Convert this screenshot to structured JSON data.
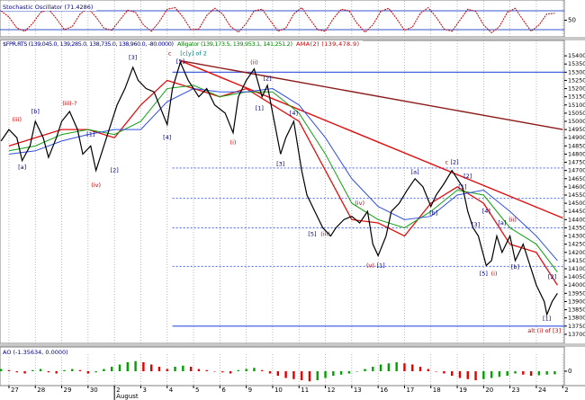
{
  "chart_data": [
    {
      "type": "line",
      "title": "Stochastic Oscillator (71.4286)",
      "x": [
        -3,
        0,
        3,
        6,
        9,
        12,
        15,
        18,
        21,
        24,
        27,
        30,
        33,
        36,
        39,
        42,
        45,
        48,
        51,
        54,
        57,
        60,
        63,
        66,
        69,
        72,
        75,
        78,
        81,
        84,
        87,
        90,
        93,
        96,
        99,
        102,
        105,
        108,
        111,
        114,
        117,
        120,
        123,
        126,
        129,
        132,
        135,
        138,
        141,
        144,
        147,
        150,
        153,
        156,
        159,
        162,
        165,
        168,
        171,
        174,
        177,
        180,
        183,
        186,
        189,
        192,
        195,
        198,
        201,
        204,
        207
      ],
      "series": [
        {
          "color": "#c00000",
          "values": [
            80,
            60,
            25,
            15,
            40,
            75,
            85,
            55,
            20,
            30,
            70,
            88,
            60,
            25,
            18,
            50,
            82,
            75,
            35,
            15,
            45,
            85,
            90,
            60,
            20,
            22,
            65,
            88,
            70,
            30,
            12,
            40,
            80,
            85,
            50,
            15,
            25,
            70,
            90,
            55,
            20,
            15,
            55,
            85,
            80,
            40,
            12,
            35,
            78,
            88,
            55,
            18,
            28,
            72,
            90,
            60,
            22,
            15,
            50,
            85,
            78,
            35,
            10,
            30,
            75,
            88,
            50,
            15,
            35,
            70,
            72
          ]
        }
      ],
      "ylim": [
        0,
        100
      ],
      "yticks": [
        50
      ],
      "hlines": [
        {
          "value": 80,
          "color": "#3355cc",
          "style": "solid"
        },
        {
          "value": 20,
          "color": "#3355cc",
          "style": "solid"
        }
      ]
    },
    {
      "type": "line",
      "title": "$FPR.RTS (139,045.0, 139,285.0, 138,735.0, 138,960.0, -80.0000)",
      "subtitles": [
        {
          "text": "Alligator (139,173.5, 139,953.1, 141,251.2)",
          "color": "#008000"
        },
        {
          "text": "AMA(2) (139,478.9)",
          "color": "#c00000"
        }
      ],
      "x": [
        -3,
        0,
        3,
        5,
        8,
        10,
        13,
        15,
        18,
        20,
        23,
        26,
        28,
        31,
        33,
        36,
        38,
        41,
        44,
        47,
        49,
        52,
        55,
        57,
        60,
        62,
        65,
        68,
        72,
        75,
        78,
        82,
        85,
        87,
        90,
        93,
        96,
        98,
        100,
        103,
        105,
        108,
        111,
        113,
        116,
        119,
        122,
        124,
        127,
        130,
        133,
        136,
        138,
        140,
        143,
        145,
        148,
        151,
        154,
        157,
        160,
        162,
        165,
        168,
        170,
        172,
        174,
        176,
        178,
        181,
        183,
        185,
        187,
        190,
        192,
        195,
        197,
        200,
        203,
        204,
        206,
        208
      ],
      "series": [
        {
          "color": "#000000",
          "width": 1.2,
          "values": [
            14880,
            14950,
            14900,
            14760,
            14850,
            15000,
            14900,
            14780,
            14900,
            15000,
            15060,
            14950,
            14800,
            14850,
            14700,
            14850,
            14950,
            15100,
            15200,
            15330,
            15250,
            15200,
            15180,
            15100,
            14980,
            15200,
            15360,
            15250,
            15150,
            15200,
            15100,
            15050,
            14930,
            15150,
            15250,
            15320,
            15150,
            15220,
            15050,
            14800,
            14900,
            15000,
            14700,
            14550,
            14450,
            14350,
            14300,
            14350,
            14400,
            14420,
            14380,
            14450,
            14250,
            14180,
            14300,
            14450,
            14500,
            14580,
            14650,
            14600,
            14480,
            14550,
            14620,
            14700,
            14650,
            14600,
            14450,
            14350,
            14300,
            14120,
            14150,
            14300,
            14200,
            14300,
            14150,
            14250,
            14150,
            14000,
            13900,
            13820,
            13900,
            13950
          ]
        },
        {
          "color": "#e01010",
          "width": 1.3,
          "x": [
            0,
            10,
            20,
            30,
            40,
            50,
            60,
            70,
            80,
            90,
            100,
            110,
            120,
            130,
            140,
            150,
            160,
            170,
            180,
            190,
            200,
            208
          ],
          "values": [
            14850,
            14900,
            14950,
            14950,
            14900,
            15100,
            15250,
            15200,
            15150,
            15200,
            15100,
            15000,
            14700,
            14400,
            14380,
            14300,
            14500,
            14600,
            14500,
            14250,
            14200,
            14000
          ]
        },
        {
          "color": "#10a010",
          "width": 1,
          "x": [
            0,
            10,
            20,
            30,
            40,
            50,
            60,
            70,
            80,
            90,
            100,
            110,
            120,
            130,
            140,
            150,
            160,
            170,
            180,
            190,
            200,
            208
          ],
          "values": [
            14820,
            14850,
            14920,
            14950,
            14920,
            15000,
            15200,
            15220,
            15150,
            15180,
            15180,
            15050,
            14800,
            14500,
            14400,
            14350,
            14450,
            14580,
            14550,
            14350,
            14250,
            14080
          ]
        },
        {
          "color": "#3050e0",
          "width": 1,
          "x": [
            0,
            10,
            20,
            30,
            40,
            50,
            60,
            70,
            80,
            90,
            100,
            110,
            120,
            130,
            140,
            150,
            160,
            170,
            180,
            190,
            200,
            208
          ],
          "values": [
            14800,
            14820,
            14880,
            14920,
            14950,
            14950,
            15120,
            15200,
            15180,
            15180,
            15200,
            15100,
            14900,
            14650,
            14480,
            14400,
            14420,
            14550,
            14580,
            14450,
            14300,
            14150
          ]
        }
      ],
      "trend_lines": [
        {
          "color": "#8b1a1a",
          "x": [
            65,
            210
          ],
          "values": [
            15370,
            14950
          ]
        },
        {
          "color": "#e01010",
          "x": [
            65,
            210
          ],
          "values": [
            15370,
            14410
          ]
        }
      ],
      "hlines": [
        {
          "value": 15300,
          "from": 62,
          "color": "#3050e0",
          "style": "solid"
        },
        {
          "value": 14715,
          "from": 62,
          "color": "#3050e0",
          "style": "dotted"
        },
        {
          "value": 14530,
          "from": 62,
          "color": "#3050e0",
          "style": "dotted"
        },
        {
          "value": 14350,
          "from": 62,
          "color": "#3050e0",
          "style": "dotted"
        },
        {
          "value": 14115,
          "from": 62,
          "color": "#3050e0",
          "style": "dotted"
        },
        {
          "value": 13750,
          "from": 62,
          "color": "#3050e0",
          "style": "solid"
        }
      ],
      "annotations": [
        {
          "text": "(iii)",
          "x": 3,
          "y": 15010,
          "color": "#c00000"
        },
        {
          "text": "[a]",
          "x": 5,
          "y": 14720,
          "color": "#000080"
        },
        {
          "text": "[b]",
          "x": 10,
          "y": 15060,
          "color": "#000080"
        },
        {
          "text": "(iii)-?",
          "x": 23,
          "y": 15110,
          "color": "#c00000"
        },
        {
          "text": "[1]",
          "x": 31,
          "y": 14920,
          "color": "#000080"
        },
        {
          "text": "[2]",
          "x": 40,
          "y": 14700,
          "color": "#000080"
        },
        {
          "text": "(iv)",
          "x": 33,
          "y": 14610,
          "color": "#c00000"
        },
        {
          "text": "[3]",
          "x": 47,
          "y": 15390,
          "color": "#000080"
        },
        {
          "text": "[4]",
          "x": 60,
          "y": 14900,
          "color": "#000080"
        },
        {
          "text": "c",
          "x": 61,
          "y": 15415,
          "color": "#c00000"
        },
        {
          "text": "[c[y] of 2",
          "x": 70,
          "y": 15415,
          "color": "#008080"
        },
        {
          "text": "[5]",
          "x": 65,
          "y": 15365,
          "color": "#000080"
        },
        {
          "text": "(i)",
          "x": 85,
          "y": 14870,
          "color": "#c00000"
        },
        {
          "text": "(ii)",
          "x": 93,
          "y": 15360,
          "color": "#c00000"
        },
        {
          "text": "[1]",
          "x": 95,
          "y": 15080,
          "color": "#000080"
        },
        {
          "text": "[2]",
          "x": 98,
          "y": 15260,
          "color": "#000080"
        },
        {
          "text": "[3]",
          "x": 103,
          "y": 14740,
          "color": "#000080"
        },
        {
          "text": "[4]",
          "x": 108,
          "y": 15050,
          "color": "#000080"
        },
        {
          "text": "[5]",
          "x": 115,
          "y": 14310,
          "color": "#000080"
        },
        {
          "text": "(iii)",
          "x": 120,
          "y": 14310,
          "color": "#c00000"
        },
        {
          "text": "(iv)",
          "x": 133,
          "y": 14500,
          "color": "#c00000"
        },
        {
          "text": "(v)",
          "x": 137,
          "y": 14120,
          "color": "#c00000"
        },
        {
          "text": "[1]",
          "x": 141,
          "y": 14120,
          "color": "#000080"
        },
        {
          "text": "[a]",
          "x": 154,
          "y": 14690,
          "color": "#000080"
        },
        {
          "text": "[b]",
          "x": 161,
          "y": 14440,
          "color": "#000080"
        },
        {
          "text": "c",
          "x": 166,
          "y": 14750,
          "color": "#c00000"
        },
        {
          "text": "[2]",
          "x": 169,
          "y": 14750,
          "color": "#000080"
        },
        {
          "text": "[1]",
          "x": 172,
          "y": 14600,
          "color": "#000080"
        },
        {
          "text": "[2]",
          "x": 174,
          "y": 14665,
          "color": "#000080"
        },
        {
          "text": "[3]",
          "x": 177,
          "y": 14370,
          "color": "#000080"
        },
        {
          "text": "[4]",
          "x": 181,
          "y": 14450,
          "color": "#000080"
        },
        {
          "text": "[5]",
          "x": 180,
          "y": 14070,
          "color": "#000080"
        },
        {
          "text": "(i)",
          "x": 184,
          "y": 14070,
          "color": "#c00000"
        },
        {
          "text": "[a]",
          "x": 187,
          "y": 14380,
          "color": "#000080"
        },
        {
          "text": "(ii)",
          "x": 191,
          "y": 14400,
          "color": "#c00000"
        },
        {
          "text": "[b]",
          "x": 192,
          "y": 14110,
          "color": "#000080"
        },
        {
          "text": "[1]",
          "x": 204,
          "y": 13795,
          "color": "#000080"
        },
        {
          "text": "[2]",
          "x": 206,
          "y": 14050,
          "color": "#000080"
        },
        {
          "text": "alt (i) of [3]",
          "x": 203,
          "y": 13720,
          "color": "#c00000"
        }
      ],
      "xlim": [
        -3.4,
        210.6
      ],
      "xticks": [
        {
          "value": 0,
          "label": "27"
        },
        {
          "value": 10,
          "label": "28"
        },
        {
          "value": 20,
          "label": "29"
        },
        {
          "value": 30,
          "label": "30"
        },
        {
          "value": 40,
          "label": "2"
        },
        {
          "value": 50,
          "label": "3"
        },
        {
          "value": 60,
          "label": "4"
        },
        {
          "value": 70,
          "label": "5"
        },
        {
          "value": 80,
          "label": "6"
        },
        {
          "value": 90,
          "label": "9"
        },
        {
          "value": 100,
          "label": "10"
        },
        {
          "value": 110,
          "label": "11"
        },
        {
          "value": 120,
          "label": "12"
        },
        {
          "value": 130,
          "label": "13"
        },
        {
          "value": 140,
          "label": "16"
        },
        {
          "value": 150,
          "label": "17"
        },
        {
          "value": 160,
          "label": "18"
        },
        {
          "value": 170,
          "label": "19"
        },
        {
          "value": 180,
          "label": "20"
        },
        {
          "value": 190,
          "label": "23"
        },
        {
          "value": 200,
          "label": "24"
        },
        {
          "value": 210,
          "label": "2"
        }
      ],
      "month_labels": [
        {
          "value": 40,
          "label": "August"
        }
      ],
      "x_grid": true,
      "ylim": [
        13650,
        15450
      ],
      "yticks": [
        13700,
        13750,
        13800,
        13850,
        13900,
        13950,
        14000,
        14050,
        14100,
        14150,
        14200,
        14250,
        14300,
        14350,
        14400,
        14450,
        14500,
        14550,
        14600,
        14650,
        14700,
        14750,
        14800,
        14850,
        14900,
        14950,
        15000,
        15050,
        15100,
        15150,
        15200,
        15250,
        15300,
        15350,
        15400
      ]
    },
    {
      "type": "bar",
      "title": "AO (-1.35634, 0.0000)",
      "x": [
        -3,
        0,
        3,
        6,
        9,
        12,
        15,
        18,
        21,
        24,
        27,
        30,
        33,
        36,
        39,
        42,
        45,
        48,
        51,
        54,
        57,
        60,
        63,
        66,
        69,
        72,
        75,
        78,
        81,
        84,
        87,
        90,
        93,
        96,
        99,
        102,
        105,
        108,
        111,
        114,
        117,
        120,
        123,
        126,
        129,
        132,
        135,
        138,
        141,
        144,
        147,
        150,
        153,
        156,
        159,
        162,
        165,
        168,
        171,
        174,
        177,
        180,
        183,
        186,
        189,
        192,
        195,
        198,
        201,
        204,
        207
      ],
      "values": [
        1,
        0.5,
        -0.5,
        -1,
        0.5,
        1,
        -0.5,
        -1,
        0.5,
        1,
        0.5,
        -1,
        -0.5,
        1,
        2,
        3,
        4,
        4.5,
        4,
        3,
        2,
        1,
        2,
        2.5,
        2,
        1,
        0.5,
        0,
        -0.5,
        -1,
        0.5,
        1,
        1.5,
        0.5,
        -1,
        -2,
        -3,
        -3.5,
        -4,
        -4.5,
        -4,
        -3,
        -2,
        -1.5,
        -1,
        0,
        1,
        2,
        3,
        3.5,
        4,
        3.5,
        3,
        2,
        1,
        0,
        -1,
        -2,
        -3,
        -3.5,
        -4,
        -3.5,
        -3,
        -2.5,
        -2,
        -1,
        -1.5,
        -2,
        -1.8,
        -1.5,
        -1.36
      ],
      "up_color": "#00a000",
      "down_color": "#e00000",
      "ylim": [
        -6,
        6
      ],
      "yticks": [
        0
      ]
    }
  ]
}
